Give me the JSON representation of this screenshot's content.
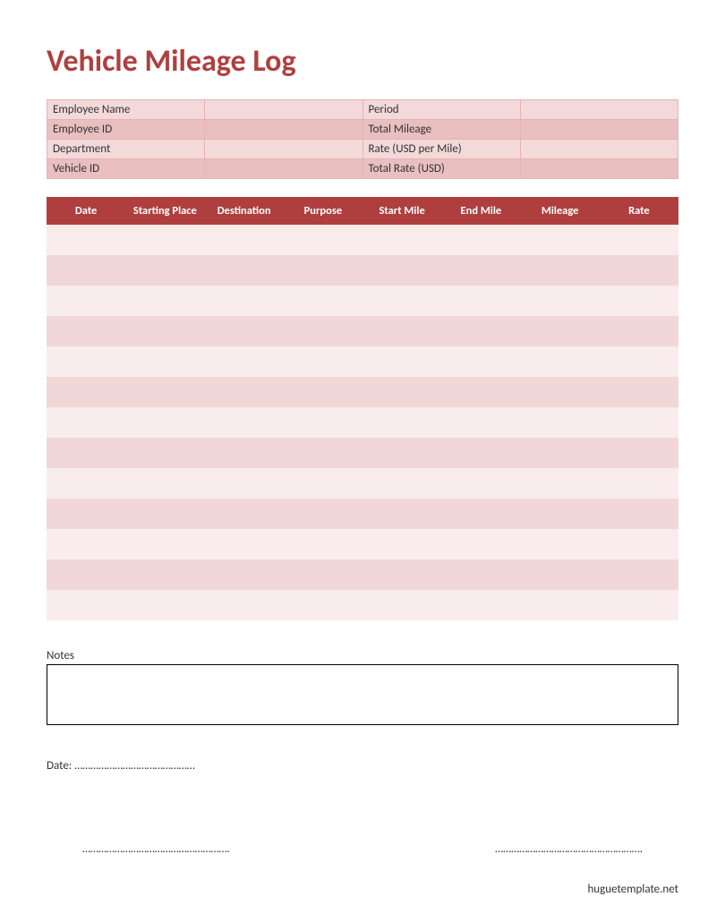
{
  "title": "Vehicle Mileage Log",
  "colors": {
    "accent": "#af3f3f",
    "header_row_light": "#f3d9d9",
    "header_row_dark": "#e9bfbf",
    "header_border": "#e5b3b3",
    "log_header_bg": "#af3f3f",
    "log_header_text": "#ffffff",
    "log_row_light": "#f9ecec",
    "log_row_dark": "#f1d7d7",
    "page_bg": "#ffffff"
  },
  "info": {
    "rows": [
      {
        "left_label": "Employee Name",
        "left_value": "",
        "right_label": "Period",
        "right_value": ""
      },
      {
        "left_label": "Employee ID",
        "left_value": "",
        "right_label": "Total Mileage",
        "right_value": ""
      },
      {
        "left_label": "Department",
        "left_value": "",
        "right_label": "Rate (USD per Mile)",
        "right_value": ""
      },
      {
        "left_label": "Vehicle ID",
        "left_value": "",
        "right_label": "Total Rate (USD)",
        "right_value": ""
      }
    ]
  },
  "log": {
    "columns": [
      "Date",
      "Starting Place",
      "Destination",
      "Purpose",
      "Start Mile",
      "End Mile",
      "Mileage",
      "Rate"
    ],
    "row_count": 13
  },
  "notes": {
    "label": "Notes",
    "value": ""
  },
  "date_line": "Date: ………………………………………",
  "signature_left": "……………………………………………….",
  "signature_right": "……………………………………………….",
  "footer": "huguetemplate.net"
}
